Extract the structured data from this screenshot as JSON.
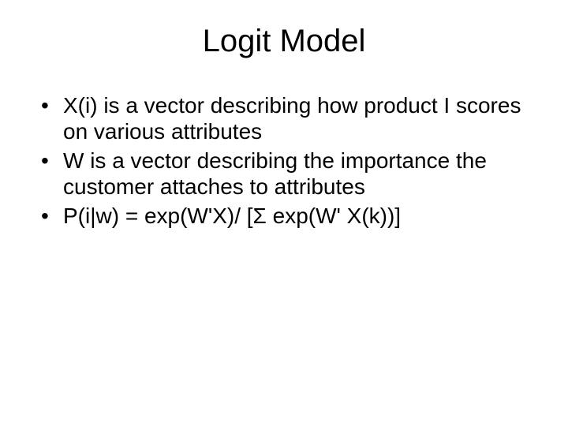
{
  "slide": {
    "title": "Logit Model",
    "bullets": [
      "X(i) is a vector describing how product I scores on various attributes",
      "W is a vector describing the importance the customer attaches to attributes",
      "P(i|w) = exp(W'X)/ [Σ exp(W' X(k))]"
    ],
    "style": {
      "background_color": "#ffffff",
      "text_color": "#000000",
      "title_fontsize": 40,
      "body_fontsize": 28,
      "font_family": "Arial"
    }
  }
}
